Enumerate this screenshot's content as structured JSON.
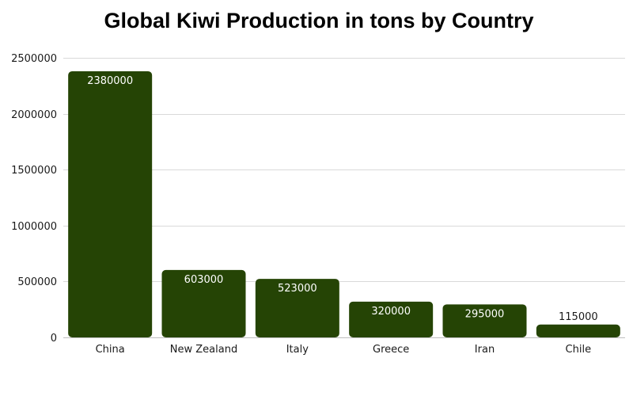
{
  "chart_data": {
    "type": "bar",
    "title": "Global Kiwi Production in tons by Country",
    "categories": [
      "China",
      "New Zealand",
      "Italy",
      "Greece",
      "Iran",
      "Chile"
    ],
    "values": [
      2380000,
      603000,
      523000,
      320000,
      295000,
      115000
    ],
    "data_labels": [
      "2380000",
      "603000",
      "523000",
      "320000",
      "295000",
      "115000"
    ],
    "y_ticks": [
      "0",
      "500000",
      "1000000",
      "1500000",
      "2000000",
      "2500000"
    ],
    "ylim": [
      0,
      2500000
    ],
    "grid": true,
    "legend": "none",
    "colors": {
      "bar": "#254405",
      "label_inside": "#ffffff",
      "label_outside": "#1a1a1a"
    }
  }
}
